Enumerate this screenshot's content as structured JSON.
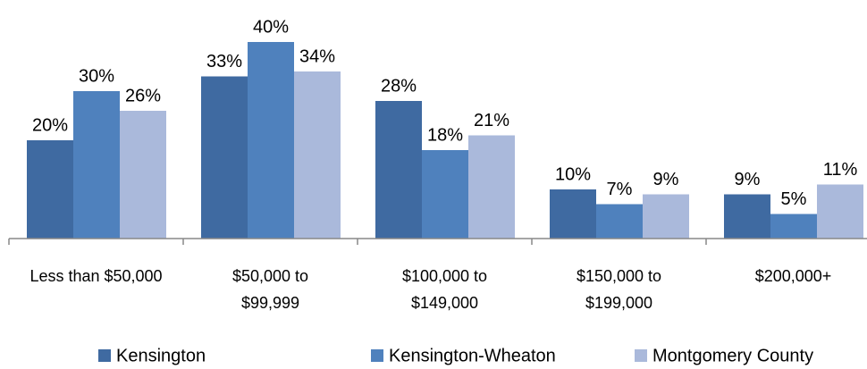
{
  "chart_data": {
    "type": "bar",
    "categories": [
      "Less than $50,000",
      "$50,000 to\n$99,999",
      "$100,000 to\n$149,000",
      "$150,000 to\n$199,000",
      "$200,000+"
    ],
    "series": [
      {
        "name": "Kensington",
        "color": "#3f6aa1",
        "values": [
          20,
          33,
          28,
          10,
          9
        ],
        "value_labels": [
          "20%",
          "33%",
          "28%",
          "10%",
          "9%"
        ]
      },
      {
        "name": "Kensington-Wheaton",
        "color": "#4f81bd",
        "values": [
          30,
          40,
          18,
          7,
          5
        ],
        "value_labels": [
          "30%",
          "40%",
          "18%",
          "7%",
          "5%"
        ]
      },
      {
        "name": "Montgomery County",
        "color": "#aab9db",
        "values": [
          26,
          34,
          21,
          9,
          11
        ],
        "value_labels": [
          "26%",
          "34%",
          "21%",
          "9%",
          "11%"
        ]
      }
    ]
  }
}
